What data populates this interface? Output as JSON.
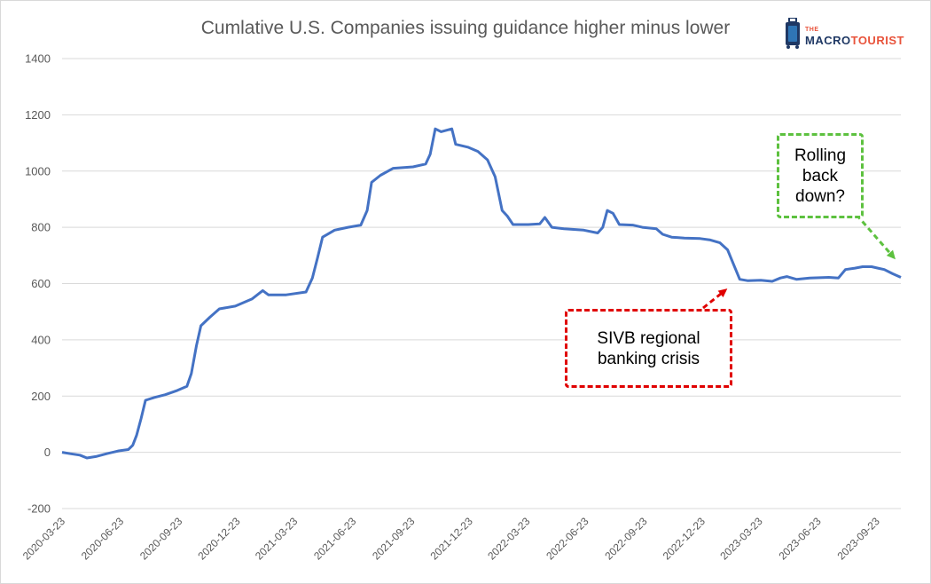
{
  "logo": {
    "small": "THE",
    "word1": "MACRO",
    "word2": "TOURIST"
  },
  "annotations": {
    "svb": {
      "lines": [
        "SIVB regional",
        "banking crisis"
      ],
      "color": "#e00000"
    },
    "rolling": {
      "lines": [
        "Rolling",
        "back",
        "down?"
      ],
      "color": "#5dc13f"
    }
  },
  "chart_data": {
    "type": "line",
    "title": "Cumlative U.S. Companies issuing guidance higher minus lower",
    "xlabel": "",
    "ylabel": "",
    "ylim": [
      -200,
      1400
    ],
    "yticks": [
      -200,
      0,
      200,
      400,
      600,
      800,
      1000,
      1200,
      1400
    ],
    "xticks": [
      "2020-03-23",
      "2020-06-23",
      "2020-09-23",
      "2020-12-23",
      "2021-03-23",
      "2021-06-23",
      "2021-09-23",
      "2021-12-23",
      "2022-03-23",
      "2022-06-23",
      "2022-09-23",
      "2022-12-23",
      "2023-03-23",
      "2023-06-23",
      "2023-09-23"
    ],
    "x_start": "2020-03-23",
    "x_end": "2023-10-31",
    "grid": true,
    "line_color": "#4472c4",
    "series": [
      {
        "values": [
          [
            "2020-03-23",
            0
          ],
          [
            "2020-04-05",
            -5
          ],
          [
            "2020-04-20",
            -10
          ],
          [
            "2020-05-01",
            -20
          ],
          [
            "2020-05-15",
            -15
          ],
          [
            "2020-06-01",
            -5
          ],
          [
            "2020-06-20",
            5
          ],
          [
            "2020-07-05",
            10
          ],
          [
            "2020-07-12",
            25
          ],
          [
            "2020-07-18",
            60
          ],
          [
            "2020-07-25",
            120
          ],
          [
            "2020-08-01",
            185
          ],
          [
            "2020-08-15",
            195
          ],
          [
            "2020-09-01",
            205
          ],
          [
            "2020-09-20",
            220
          ],
          [
            "2020-10-05",
            235
          ],
          [
            "2020-10-12",
            280
          ],
          [
            "2020-10-20",
            380
          ],
          [
            "2020-10-27",
            450
          ],
          [
            "2020-11-10",
            480
          ],
          [
            "2020-11-25",
            510
          ],
          [
            "2020-12-20",
            520
          ],
          [
            "2021-01-15",
            545
          ],
          [
            "2021-02-01",
            575
          ],
          [
            "2021-02-10",
            560
          ],
          [
            "2021-03-10",
            560
          ],
          [
            "2021-04-10",
            570
          ],
          [
            "2021-04-20",
            620
          ],
          [
            "2021-04-28",
            690
          ],
          [
            "2021-05-06",
            765
          ],
          [
            "2021-05-25",
            790
          ],
          [
            "2021-06-15",
            800
          ],
          [
            "2021-07-05",
            808
          ],
          [
            "2021-07-15",
            860
          ],
          [
            "2021-07-22",
            960
          ],
          [
            "2021-08-05",
            985
          ],
          [
            "2021-08-25",
            1010
          ],
          [
            "2021-09-25",
            1015
          ],
          [
            "2021-10-15",
            1025
          ],
          [
            "2021-10-22",
            1060
          ],
          [
            "2021-10-30",
            1150
          ],
          [
            "2021-11-08",
            1140
          ],
          [
            "2021-11-25",
            1150
          ],
          [
            "2021-12-01",
            1095
          ],
          [
            "2021-12-20",
            1085
          ],
          [
            "2022-01-05",
            1070
          ],
          [
            "2022-01-20",
            1040
          ],
          [
            "2022-02-01",
            980
          ],
          [
            "2022-02-12",
            860
          ],
          [
            "2022-02-20",
            840
          ],
          [
            "2022-03-01",
            810
          ],
          [
            "2022-03-25",
            810
          ],
          [
            "2022-04-12",
            812
          ],
          [
            "2022-04-20",
            835
          ],
          [
            "2022-05-01",
            800
          ],
          [
            "2022-05-20",
            795
          ],
          [
            "2022-06-20",
            790
          ],
          [
            "2022-07-12",
            780
          ],
          [
            "2022-07-20",
            800
          ],
          [
            "2022-07-27",
            860
          ],
          [
            "2022-08-05",
            850
          ],
          [
            "2022-08-15",
            810
          ],
          [
            "2022-09-05",
            808
          ],
          [
            "2022-09-20",
            800
          ],
          [
            "2022-10-12",
            795
          ],
          [
            "2022-10-22",
            775
          ],
          [
            "2022-11-05",
            765
          ],
          [
            "2022-11-25",
            762
          ],
          [
            "2022-12-20",
            760
          ],
          [
            "2023-01-05",
            755
          ],
          [
            "2023-01-20",
            745
          ],
          [
            "2023-02-01",
            720
          ],
          [
            "2023-02-10",
            670
          ],
          [
            "2023-02-20",
            615
          ],
          [
            "2023-03-05",
            610
          ],
          [
            "2023-03-25",
            612
          ],
          [
            "2023-04-12",
            608
          ],
          [
            "2023-04-25",
            620
          ],
          [
            "2023-05-05",
            625
          ],
          [
            "2023-05-20",
            615
          ],
          [
            "2023-06-10",
            620
          ],
          [
            "2023-07-10",
            622
          ],
          [
            "2023-07-25",
            620
          ],
          [
            "2023-08-05",
            650
          ],
          [
            "2023-08-20",
            655
          ],
          [
            "2023-09-01",
            660
          ],
          [
            "2023-09-15",
            660
          ],
          [
            "2023-09-25",
            655
          ],
          [
            "2023-10-05",
            650
          ],
          [
            "2023-10-18",
            635
          ],
          [
            "2023-10-31",
            622
          ]
        ]
      }
    ]
  }
}
